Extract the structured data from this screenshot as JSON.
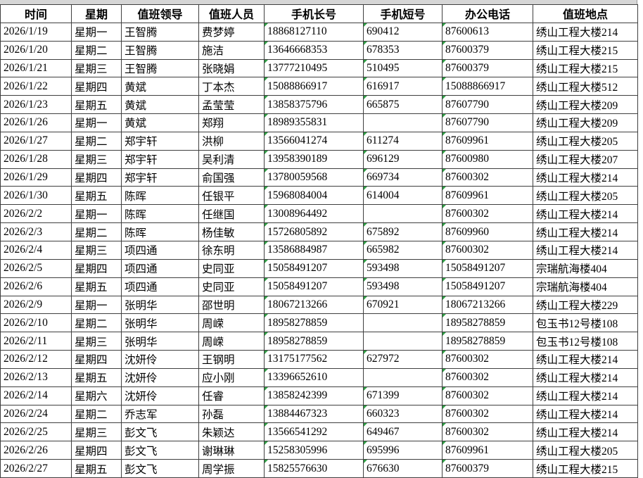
{
  "colors": {
    "green_marker": "#2f9e44",
    "grid_line": "#3f3f3f",
    "top_strip": "#d6d6d6",
    "background": "#ffffff",
    "text": "#000000"
  },
  "table": {
    "headers": [
      {
        "label": "时间"
      },
      {
        "label": "星期"
      },
      {
        "label": "值班领导"
      },
      {
        "label": "值班人员"
      },
      {
        "label": "手机长号"
      },
      {
        "label": "手机短号"
      },
      {
        "label": "办公电话"
      },
      {
        "label": "值班地点"
      }
    ],
    "rows": [
      {
        "date": "2026/1/19",
        "weekday": "星期一",
        "leader": "王智腾",
        "person": "费梦婷",
        "mobile_long": "18868127110",
        "mobile_short": "690412",
        "office_phone": "87600613",
        "location": "绣山工程大楼214"
      },
      {
        "date": "2026/1/20",
        "weekday": "星期二",
        "leader": "王智腾",
        "person": "施洁",
        "mobile_long": "13646668353",
        "mobile_short": "678353",
        "office_phone": "87600379",
        "location": "绣山工程大楼215"
      },
      {
        "date": "2026/1/21",
        "weekday": "星期三",
        "leader": "王智腾",
        "person": "张晓娟",
        "mobile_long": "13777210495",
        "mobile_short": "510495",
        "office_phone": "87600379",
        "location": "绣山工程大楼215"
      },
      {
        "date": "2026/1/22",
        "weekday": "星期四",
        "leader": "黄斌",
        "person": "丁本杰",
        "mobile_long": "15088866917",
        "mobile_short": "616917",
        "office_phone": "15088866917",
        "location": "绣山工程大楼512"
      },
      {
        "date": "2026/1/23",
        "weekday": "星期五",
        "leader": "黄斌",
        "person": "孟莹莹",
        "mobile_long": "13858375796",
        "mobile_short": "665875",
        "office_phone": "87607790",
        "location": "绣山工程大楼209"
      },
      {
        "date": "2026/1/26",
        "weekday": "星期一",
        "leader": "黄斌",
        "person": "郑翔",
        "mobile_long": "18989355831",
        "mobile_short": "",
        "office_phone": "87607790",
        "location": "绣山工程大楼209"
      },
      {
        "date": "2026/1/27",
        "weekday": "星期二",
        "leader": "郑宇轩",
        "person": "洪柳",
        "mobile_long": "13566041274",
        "mobile_short": "611274",
        "office_phone": "87609961",
        "location": "绣山工程大楼205"
      },
      {
        "date": "2026/1/28",
        "weekday": "星期三",
        "leader": "郑宇轩",
        "person": "吴利清",
        "mobile_long": "13958390189",
        "mobile_short": "696129",
        "office_phone": "87600980",
        "location": "绣山工程大楼207"
      },
      {
        "date": "2026/1/29",
        "weekday": "星期四",
        "leader": "郑宇轩",
        "person": "俞国强",
        "mobile_long": "13780059568",
        "mobile_short": "669734",
        "office_phone": "87600302",
        "location": "绣山工程大楼214"
      },
      {
        "date": "2026/1/30",
        "weekday": "星期五",
        "leader": "陈晖",
        "person": "任银平",
        "mobile_long": "15968084004",
        "mobile_short": "614004",
        "office_phone": "87609961",
        "location": "绣山工程大楼205"
      },
      {
        "date": "2026/2/2",
        "weekday": "星期一",
        "leader": "陈晖",
        "person": "任继国",
        "mobile_long": "13008964492",
        "mobile_short": "",
        "office_phone": "87600302",
        "location": "绣山工程大楼214"
      },
      {
        "date": "2026/2/3",
        "weekday": "星期二",
        "leader": "陈晖",
        "person": "杨佳敏",
        "mobile_long": "15726805892",
        "mobile_short": "675892",
        "office_phone": "87609960",
        "location": "绣山工程大楼214"
      },
      {
        "date": "2026/2/4",
        "weekday": "星期三",
        "leader": "项四通",
        "person": "徐东明",
        "mobile_long": "13586884987",
        "mobile_short": "665982",
        "office_phone": "87600302",
        "location": "绣山工程大楼214"
      },
      {
        "date": "2026/2/5",
        "weekday": "星期四",
        "leader": "项四通",
        "person": "史同亚",
        "mobile_long": "15058491207",
        "mobile_short": "593498",
        "office_phone": "15058491207",
        "location": "宗瑞航海楼404"
      },
      {
        "date": "2026/2/6",
        "weekday": "星期五",
        "leader": "项四通",
        "person": "史同亚",
        "mobile_long": "15058491207",
        "mobile_short": "593498",
        "office_phone": "15058491207",
        "location": "宗瑞航海楼404"
      },
      {
        "date": "2026/2/9",
        "weekday": "星期一",
        "leader": "张明华",
        "person": "邵世明",
        "mobile_long": "18067213266",
        "mobile_short": "670921",
        "office_phone": "18067213266",
        "location": "绣山工程大楼229"
      },
      {
        "date": "2026/2/10",
        "weekday": "星期二",
        "leader": "张明华",
        "person": "周嵘",
        "mobile_long": "18958278859",
        "mobile_short": "",
        "office_phone": "18958278859",
        "location": "包玉书12号楼108"
      },
      {
        "date": "2026/2/11",
        "weekday": "星期三",
        "leader": "张明华",
        "person": "周嵘",
        "mobile_long": "18958278859",
        "mobile_short": "",
        "office_phone": "18958278859",
        "location": "包玉书12号楼108"
      },
      {
        "date": "2026/2/12",
        "weekday": "星期四",
        "leader": "沈妍伶",
        "person": "王钢明",
        "mobile_long": "13175177562",
        "mobile_short": "627972",
        "office_phone": "87600302",
        "location": "绣山工程大楼214"
      },
      {
        "date": "2026/2/13",
        "weekday": "星期五",
        "leader": "沈妍伶",
        "person": "应小刚",
        "mobile_long": "13396652610",
        "mobile_short": "",
        "office_phone": "87600302",
        "location": "绣山工程大楼214"
      },
      {
        "date": "2026/2/14",
        "weekday": "星期六",
        "leader": "沈妍伶",
        "person": "任睿",
        "mobile_long": "13858242399",
        "mobile_short": "671399",
        "office_phone": "87600302",
        "location": "绣山工程大楼214"
      },
      {
        "date": "2026/2/24",
        "weekday": "星期二",
        "leader": "乔志军",
        "person": "孙磊",
        "mobile_long": "13884467323",
        "mobile_short": "660323",
        "office_phone": "87600302",
        "location": "绣山工程大楼214"
      },
      {
        "date": "2026/2/25",
        "weekday": "星期三",
        "leader": "彭文飞",
        "person": "朱颖达",
        "mobile_long": "13566541292",
        "mobile_short": "649467",
        "office_phone": "87600302",
        "location": "绣山工程大楼214"
      },
      {
        "date": "2026/2/26",
        "weekday": "星期四",
        "leader": "彭文飞",
        "person": "谢琳琳",
        "mobile_long": "15258305996",
        "mobile_short": "695996",
        "office_phone": "87609961",
        "location": "绣山工程大楼205"
      },
      {
        "date": "2026/2/27",
        "weekday": "星期五",
        "leader": "彭文飞",
        "person": "周学振",
        "mobile_long": "15825576630",
        "mobile_short": "676630",
        "office_phone": "87600379",
        "location": "绣山工程大楼215"
      }
    ]
  }
}
